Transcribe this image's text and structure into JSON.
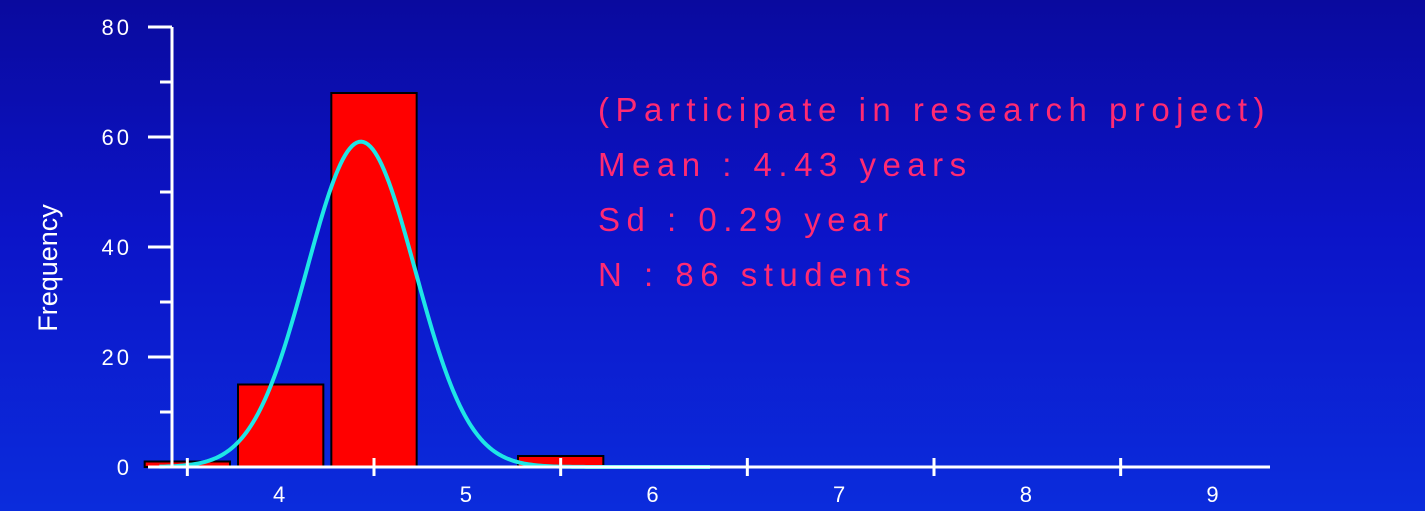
{
  "chart_data": {
    "type": "bar",
    "ylabel": "Frequency",
    "xlabel": "",
    "categories": [
      "3.5",
      "4.0",
      "4.5",
      "5.0",
      "5.5",
      "6.0"
    ],
    "values": [
      1,
      15,
      68,
      0,
      2,
      0
    ],
    "xlim": [
      3.3,
      9.3
    ],
    "ylim": [
      0,
      80
    ],
    "x_ticks": [
      4,
      5,
      6,
      7,
      8,
      9
    ],
    "y_ticks": [
      0,
      20,
      40,
      60,
      80
    ],
    "normal_curve": {
      "mean": 4.43,
      "sd": 0.29,
      "n": 86,
      "bin_width": 0.5
    },
    "colors": {
      "bars": "#ff0000",
      "curve": "#1ee6e6",
      "axis": "#ffffff",
      "annotation": "#ff2a72"
    },
    "annotations": [
      "(Participate in research project)",
      "Mean : 4.43 years",
      "Sd :  0.29 year",
      "N : 86 students"
    ]
  }
}
